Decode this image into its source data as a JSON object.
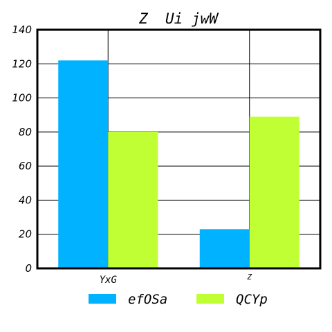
{
  "chart_data": {
    "type": "bar",
    "title": "Z  Ui jwW",
    "xlabel": "",
    "ylabel": "",
    "categories": [
      "YxG",
      "Z"
    ],
    "series": [
      {
        "name": "efOSa",
        "values": [
          122,
          23
        ],
        "color": "#00b2ff"
      },
      {
        "name": "QCYp",
        "values": [
          80,
          89
        ],
        "color": "#bfff33"
      }
    ],
    "ylim": [
      0,
      140
    ],
    "yticks": [
      0,
      20,
      40,
      60,
      80,
      100,
      120,
      140
    ],
    "grid": true,
    "legend_position": "bottom"
  }
}
